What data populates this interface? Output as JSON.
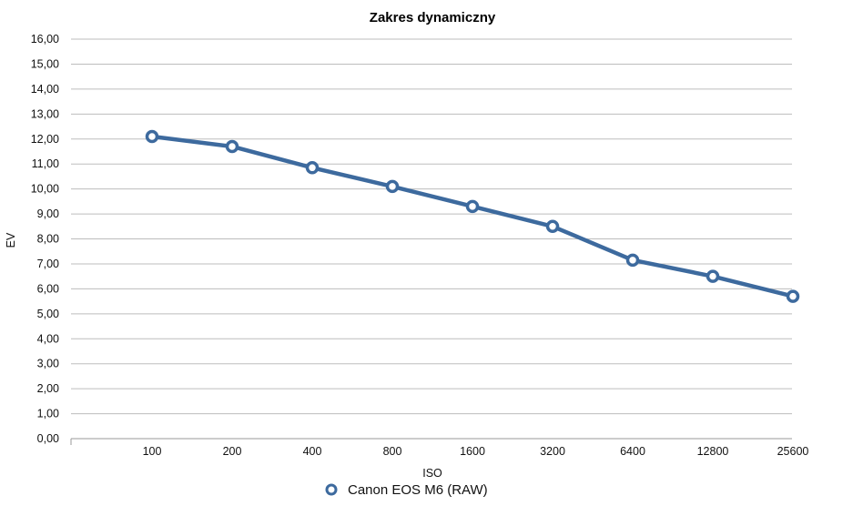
{
  "chart_data": {
    "type": "line",
    "title": "Zakres dynamiczny",
    "xlabel": "ISO",
    "ylabel": "EV",
    "categories": [
      "100",
      "200",
      "400",
      "800",
      "1600",
      "3200",
      "6400",
      "12800",
      "25600"
    ],
    "ylim": [
      0,
      16
    ],
    "yticks": [
      "0,00",
      "1,00",
      "2,00",
      "3,00",
      "4,00",
      "5,00",
      "6,00",
      "7,00",
      "8,00",
      "9,00",
      "10,00",
      "11,00",
      "12,00",
      "13,00",
      "14,00",
      "15,00",
      "16,00"
    ],
    "grid": true,
    "legend_position": "bottom",
    "series": [
      {
        "name": "Canon EOS M6 (RAW)",
        "color": "#3d6a9e",
        "values": [
          12.1,
          11.7,
          10.85,
          10.1,
          9.3,
          8.5,
          7.15,
          6.5,
          5.7
        ]
      }
    ]
  }
}
